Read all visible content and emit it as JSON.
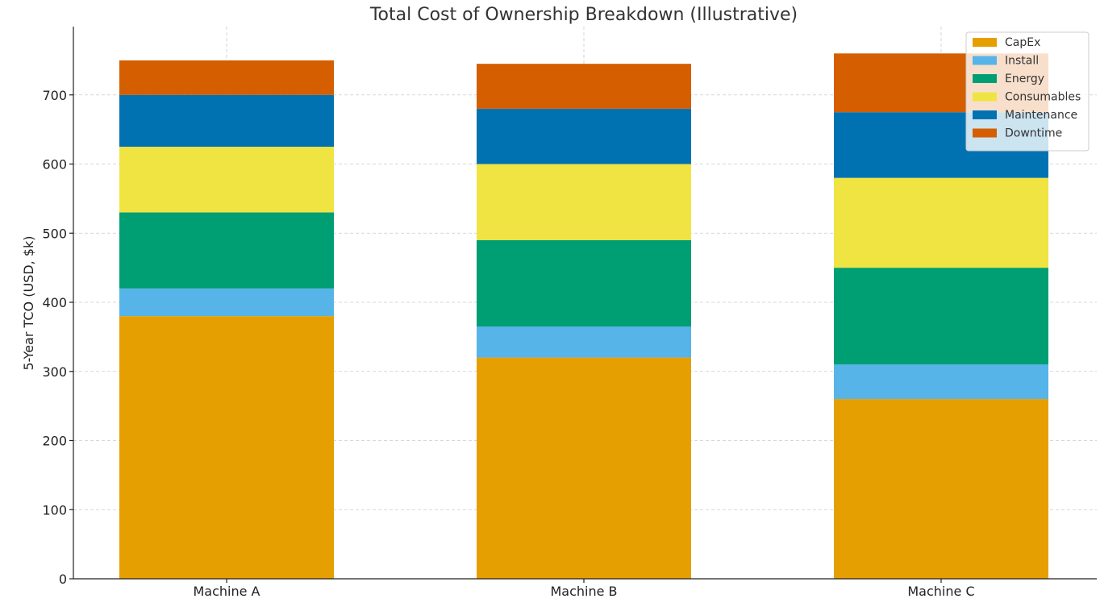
{
  "chart_data": {
    "type": "bar",
    "stacked": true,
    "title": "Total Cost of Ownership Breakdown (Illustrative)",
    "xlabel": "",
    "ylabel": "5-Year TCO (USD, $k)",
    "ylim": [
      0,
      800
    ],
    "yticks": [
      "0",
      "100",
      "200",
      "300",
      "400",
      "500",
      "600",
      "700"
    ],
    "grid": true,
    "legend_position": "top-right",
    "categories": [
      "Machine A",
      "Machine B",
      "Machine C"
    ],
    "series": [
      {
        "name": "CapEx",
        "color": "#E69F00",
        "values": [
          380,
          320,
          260
        ]
      },
      {
        "name": "Install",
        "color": "#56B4E9",
        "values": [
          40,
          45,
          50
        ]
      },
      {
        "name": "Energy",
        "color": "#009E73",
        "values": [
          110,
          125,
          140
        ]
      },
      {
        "name": "Consumables",
        "color": "#F0E442",
        "values": [
          95,
          110,
          130
        ]
      },
      {
        "name": "Maintenance",
        "color": "#0072B2",
        "values": [
          75,
          80,
          95
        ]
      },
      {
        "name": "Downtime",
        "color": "#D55E00",
        "values": [
          50,
          65,
          85
        ]
      }
    ]
  }
}
